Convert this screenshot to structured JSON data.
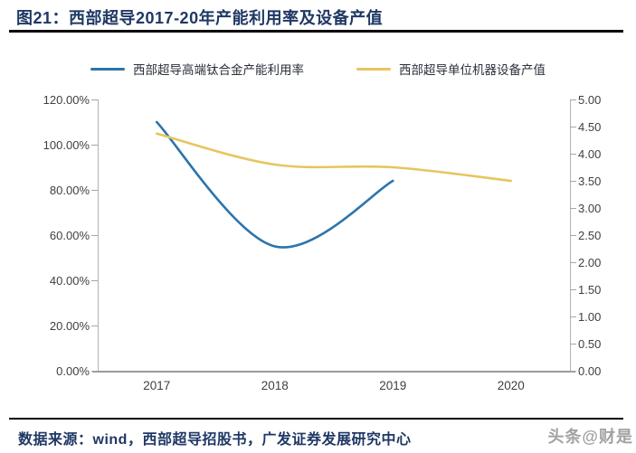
{
  "title": "图21：西部超导2017-20年产能利用率及设备产值",
  "legend": {
    "items": [
      {
        "label": "西部超导高端钛合金产能利用率",
        "color": "#2b74ac"
      },
      {
        "label": "西部超导单位机器设备产值",
        "color": "#e7c55f"
      }
    ]
  },
  "chart_data": {
    "type": "line",
    "title": "西部超导2017-20年产能利用率及设备产值",
    "categories": [
      "2017",
      "2018",
      "2019",
      "2020"
    ],
    "series": [
      {
        "name": "西部超导高端钛合金产能利用率",
        "axis": "left",
        "color": "#2b74ac",
        "values": [
          1.1,
          0.55,
          0.84,
          null
        ]
      },
      {
        "name": "西部超导单位机器设备产值",
        "axis": "right",
        "color": "#e7c55f",
        "values": [
          4.37,
          3.8,
          3.75,
          3.5
        ]
      }
    ],
    "left_axis": {
      "min": 0,
      "max": 1.2,
      "ticks": [
        "120.00%",
        "100.00%",
        "80.00%",
        "60.00%",
        "40.00%",
        "20.00%",
        "0.00%"
      ]
    },
    "right_axis": {
      "min": 0,
      "max": 5,
      "ticks": [
        "5.00",
        "4.50",
        "4.00",
        "3.50",
        "3.00",
        "2.50",
        "2.00",
        "1.50",
        "1.00",
        "0.50",
        "0.00"
      ]
    },
    "grid": false,
    "smooth": true,
    "legend_position": "top"
  },
  "footer": {
    "source": "数据来源：wind，西部超导招股书，广发证券发展研究中心",
    "watermark": "头条@财是"
  },
  "colors": {
    "title_navy": "#1f3864",
    "axis_text": "#404040",
    "axis_line": "#b3b3b3",
    "watermark_gray": "#9b9b9b"
  }
}
